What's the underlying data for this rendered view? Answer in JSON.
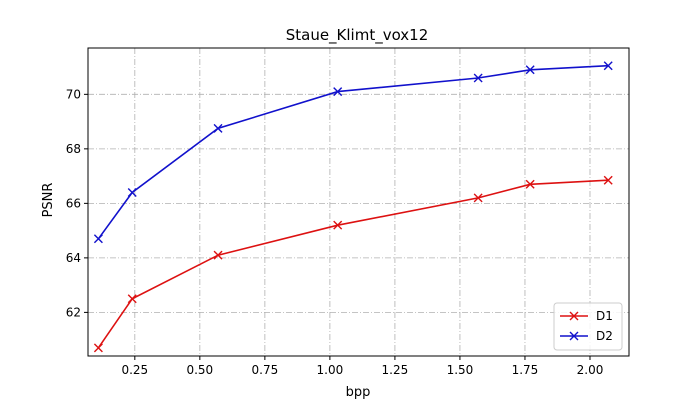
{
  "chart_data": {
    "type": "line",
    "title": "Staue_Klimt_vox12",
    "xlabel": "bpp",
    "ylabel": "PSNR",
    "xlim": [
      0.07,
      2.15
    ],
    "ylim": [
      60.4,
      71.7
    ],
    "xticks": [
      0.25,
      0.5,
      0.75,
      1.0,
      1.25,
      1.5,
      1.75,
      2.0
    ],
    "xtick_labels": [
      "0.25",
      "0.50",
      "0.75",
      "1.00",
      "1.25",
      "1.50",
      "1.75",
      "2.00"
    ],
    "yticks": [
      62,
      64,
      66,
      68,
      70
    ],
    "ytick_labels": [
      "62",
      "64",
      "66",
      "68",
      "70"
    ],
    "grid": true,
    "legend_position": "bottom-right",
    "series": [
      {
        "name": "D1",
        "color": "#dd1111",
        "marker": "x",
        "x": [
          0.11,
          0.24,
          0.57,
          1.03,
          1.57,
          1.77,
          2.07
        ],
        "y": [
          60.7,
          62.5,
          64.1,
          65.2,
          66.2,
          66.7,
          66.85
        ]
      },
      {
        "name": "D2",
        "color": "#1111cc",
        "marker": "x",
        "x": [
          0.11,
          0.24,
          0.57,
          1.03,
          1.57,
          1.77,
          2.07
        ],
        "y": [
          64.7,
          66.4,
          68.75,
          70.1,
          70.6,
          70.9,
          71.05
        ]
      }
    ]
  }
}
